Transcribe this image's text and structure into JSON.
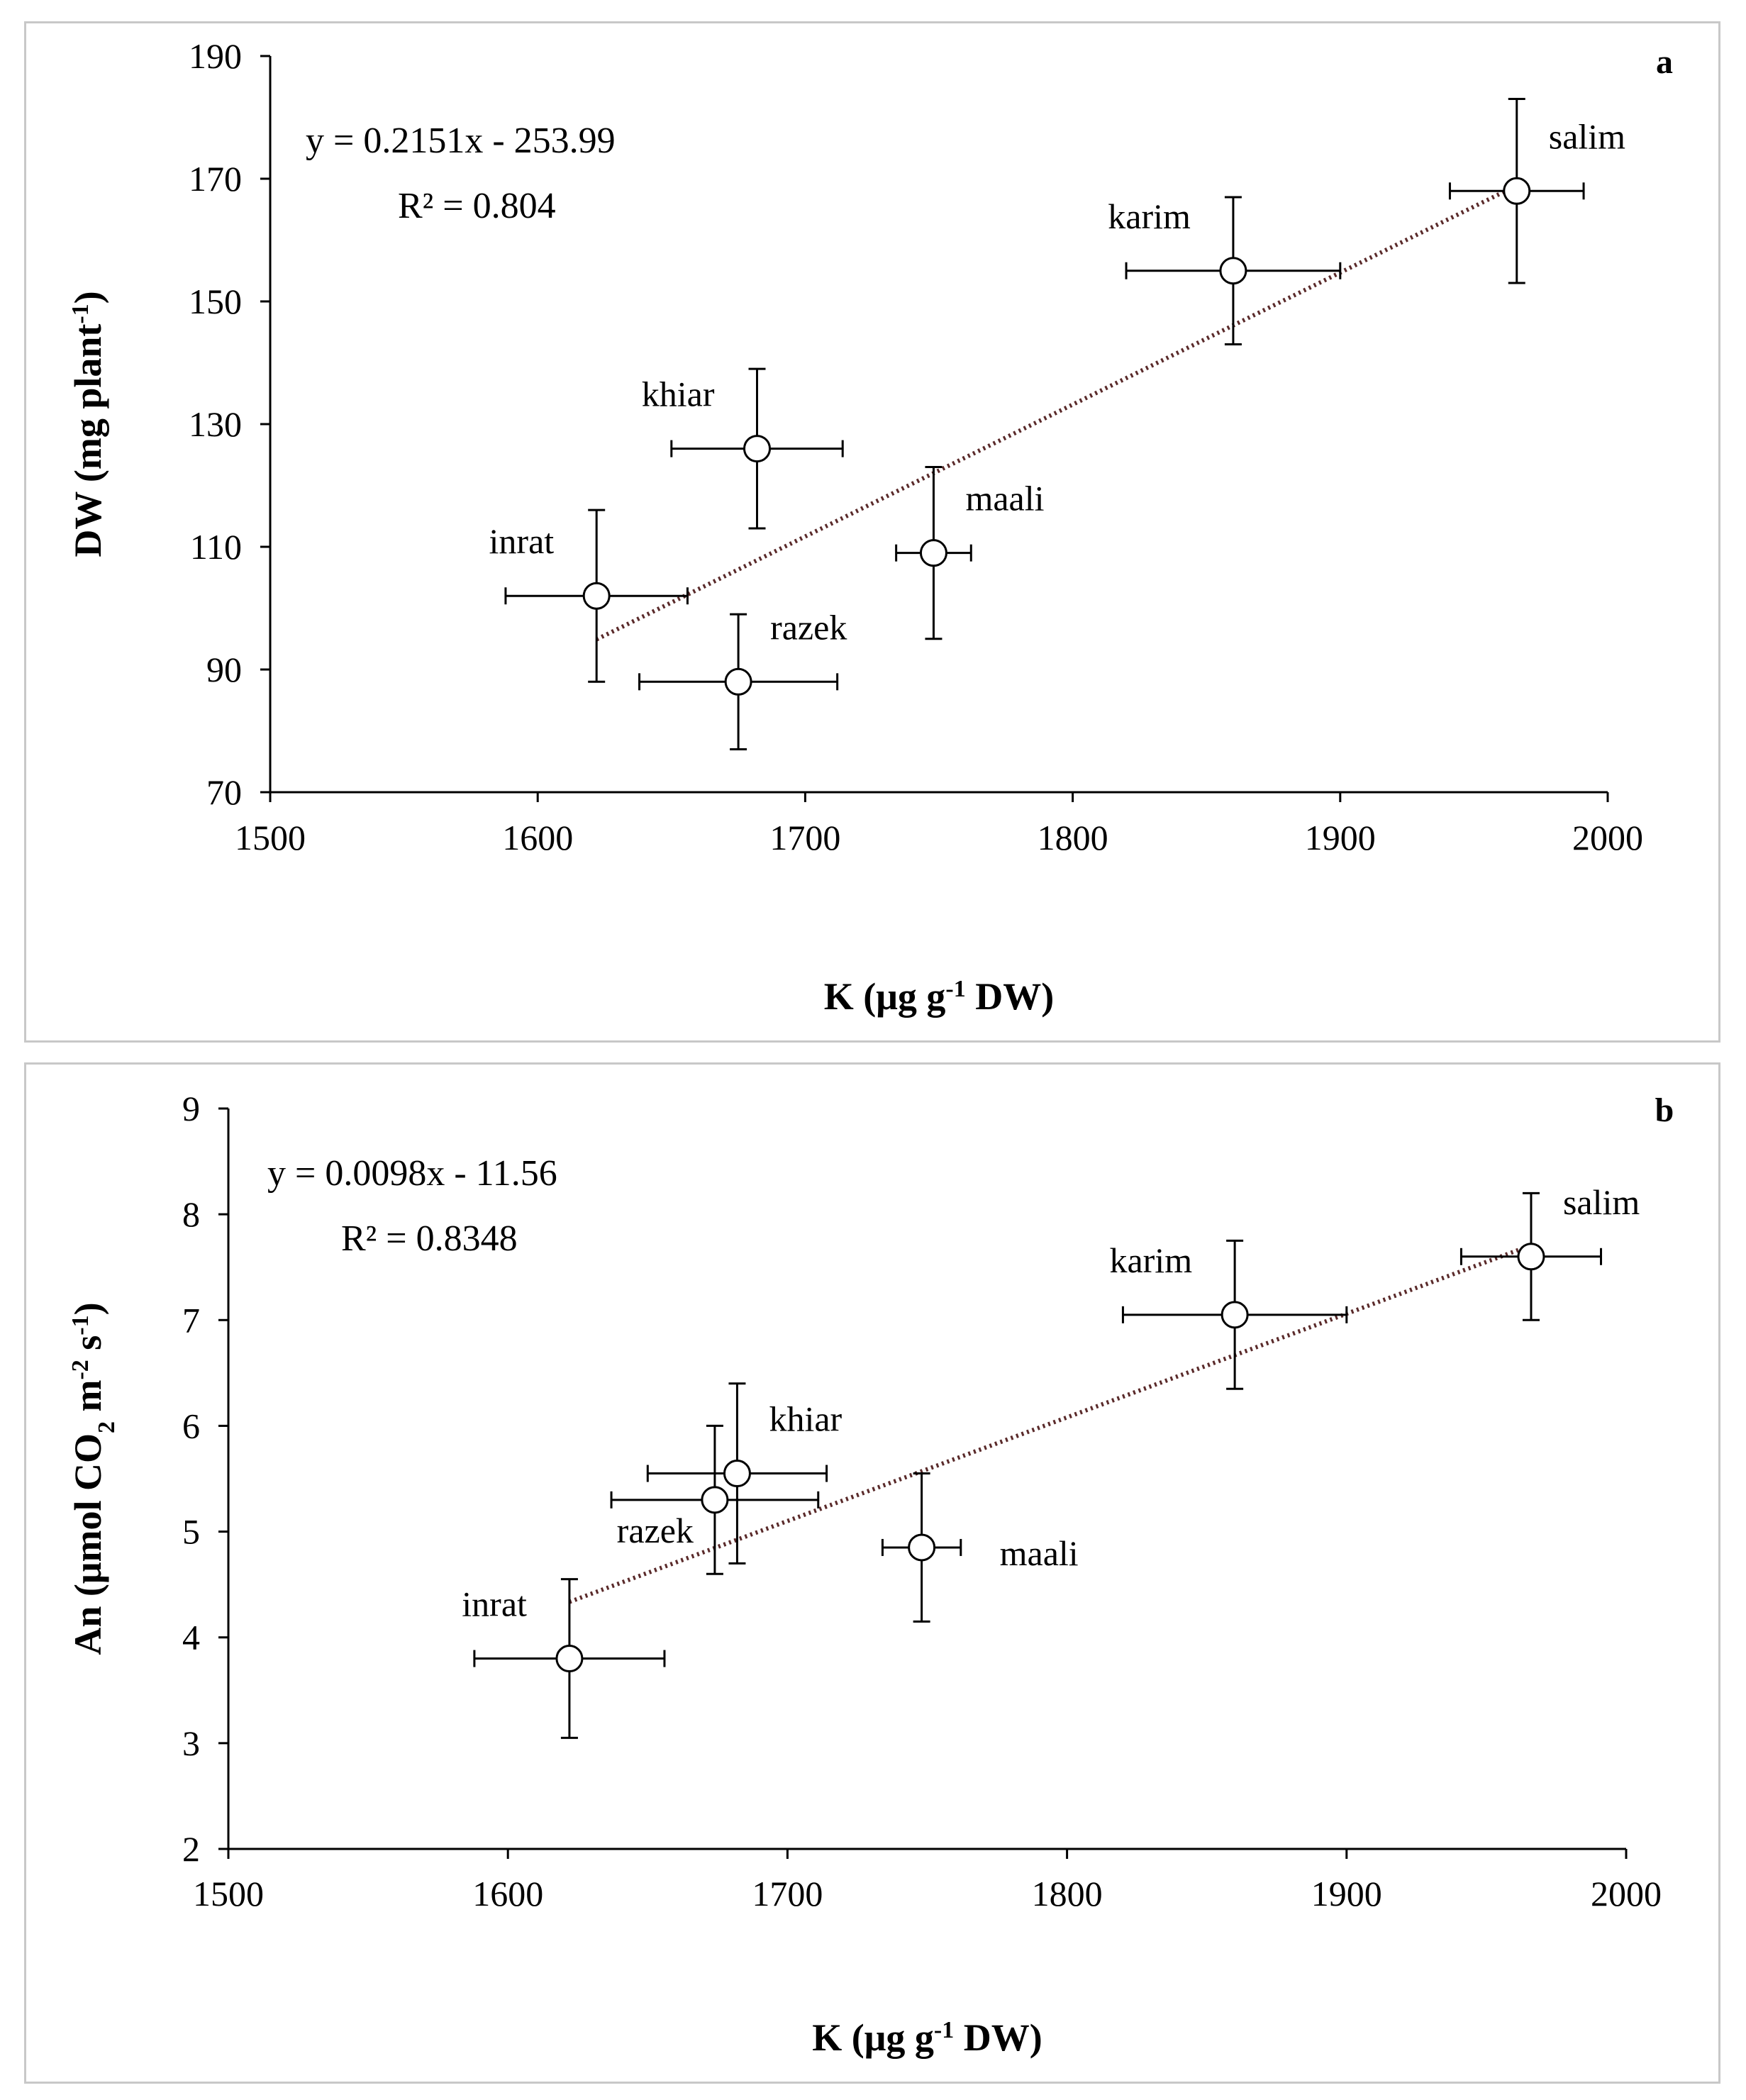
{
  "chart_data": [
    {
      "id": "a",
      "type": "scatter",
      "panel_label": "a",
      "xlabel": "K (μg g-1 DW)",
      "xlabel_parts": {
        "main": "K (μg g",
        "sup": "-1",
        "tail": " DW)"
      },
      "ylabel": "DW (mg plant-1)",
      "ylabel_parts": {
        "main": "DW (mg plant",
        "sup": "-1",
        "tail": ")"
      },
      "xlim": [
        1500,
        2000
      ],
      "ylim": [
        70,
        190
      ],
      "xticks": [
        1500,
        1600,
        1700,
        1800,
        1900,
        2000
      ],
      "yticks": [
        70,
        90,
        110,
        130,
        150,
        170,
        190
      ],
      "equation": "y = 0.2151x - 253.99",
      "r2_label": "R² = 0.804",
      "trendline": {
        "slope": 0.2151,
        "intercept": -253.99,
        "x_range": [
          1622,
          1966
        ]
      },
      "points": [
        {
          "name": "inrat",
          "x": 1622,
          "y": 102,
          "xerr": 34,
          "yerr": 14,
          "label_pos": "upper-left"
        },
        {
          "name": "razek",
          "x": 1675,
          "y": 88,
          "xerr": 37,
          "yerr": 11,
          "label_pos": "upper-right"
        },
        {
          "name": "khiar",
          "x": 1682,
          "y": 126,
          "xerr": 32,
          "yerr": 13,
          "label_pos": "upper-left"
        },
        {
          "name": "maali",
          "x": 1748,
          "y": 109,
          "xerr": 14,
          "yerr": 14,
          "label_pos": "upper-right"
        },
        {
          "name": "karim",
          "x": 1860,
          "y": 155,
          "xerr": 40,
          "yerr": 12,
          "label_pos": "upper-left"
        },
        {
          "name": "salim",
          "x": 1966,
          "y": 168,
          "xerr": 25,
          "yerr": 15,
          "label_pos": "upper-right"
        }
      ]
    },
    {
      "id": "b",
      "type": "scatter",
      "panel_label": "b",
      "xlabel": "K (μg g-1 DW)",
      "xlabel_parts": {
        "main": "K (μg g",
        "sup": "-1",
        "tail": " DW)"
      },
      "ylabel": "An (μmol CO2 m-2 s-1)",
      "ylabel_parts": {
        "main": "An (μmol CO",
        "sub": "2",
        "mid": " m",
        "sup1": "-2",
        "mid2": " s",
        "sup2": "-1",
        "tail": ")"
      },
      "xlim": [
        1500,
        2000
      ],
      "ylim": [
        2,
        9
      ],
      "xticks": [
        1500,
        1600,
        1700,
        1800,
        1900,
        2000
      ],
      "yticks": [
        2,
        3,
        4,
        5,
        6,
        7,
        8,
        9
      ],
      "equation": "y = 0.0098x - 11.56",
      "r2_label": "R² = 0.8348",
      "trendline": {
        "slope": 0.0098,
        "intercept": -11.56,
        "x_range": [
          1622,
          1966
        ]
      },
      "points": [
        {
          "name": "inrat",
          "x": 1622,
          "y": 3.8,
          "xerr": 34,
          "yerr": 0.75,
          "label_pos": "upper-left"
        },
        {
          "name": "razek",
          "x": 1674,
          "y": 5.3,
          "xerr": 37,
          "yerr": 0.7,
          "label_pos": "lower-left"
        },
        {
          "name": "khiar",
          "x": 1682,
          "y": 5.55,
          "xerr": 32,
          "yerr": 0.85,
          "label_pos": "upper-right"
        },
        {
          "name": "maali",
          "x": 1748,
          "y": 4.85,
          "xerr": 14,
          "yerr": 0.7,
          "label_pos": "right"
        },
        {
          "name": "karim",
          "x": 1860,
          "y": 7.05,
          "xerr": 40,
          "yerr": 0.7,
          "label_pos": "upper-left"
        },
        {
          "name": "salim",
          "x": 1966,
          "y": 7.6,
          "xerr": 25,
          "yerr": 0.6,
          "label_pos": "upper-right"
        }
      ]
    }
  ]
}
